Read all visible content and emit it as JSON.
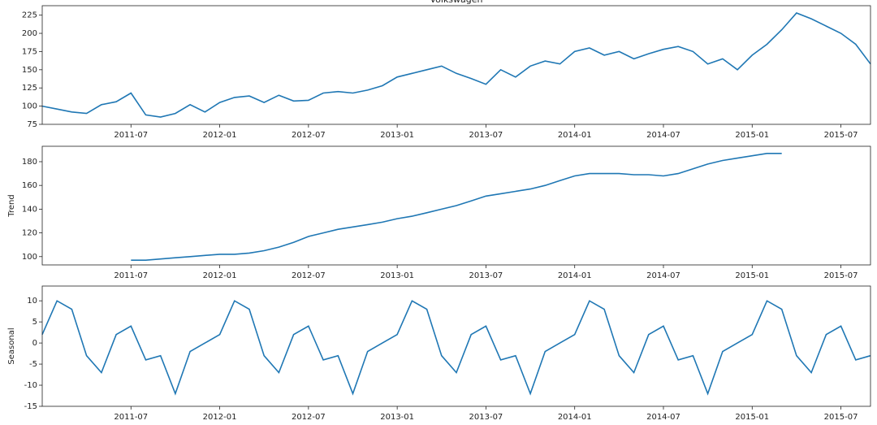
{
  "chart_data": [
    {
      "type": "line",
      "title": "Volkswagen",
      "x": [
        "2011-01",
        "2011-02",
        "2011-03",
        "2011-04",
        "2011-05",
        "2011-06",
        "2011-07",
        "2011-08",
        "2011-09",
        "2011-10",
        "2011-11",
        "2011-12",
        "2012-01",
        "2012-02",
        "2012-03",
        "2012-04",
        "2012-05",
        "2012-06",
        "2012-07",
        "2012-08",
        "2012-09",
        "2012-10",
        "2012-11",
        "2012-12",
        "2013-01",
        "2013-02",
        "2013-03",
        "2013-04",
        "2013-05",
        "2013-06",
        "2013-07",
        "2013-08",
        "2013-09",
        "2013-10",
        "2013-11",
        "2013-12",
        "2014-01",
        "2014-02",
        "2014-03",
        "2014-04",
        "2014-05",
        "2014-06",
        "2014-07",
        "2014-08",
        "2014-09",
        "2014-10",
        "2014-11",
        "2014-12",
        "2015-01",
        "2015-02",
        "2015-03",
        "2015-04",
        "2015-05",
        "2015-06",
        "2015-07",
        "2015-08",
        "2015-09"
      ],
      "series": [
        {
          "color": "#1f77b4",
          "values": [
            100,
            96,
            92,
            90,
            102,
            106,
            118,
            88,
            85,
            90,
            102,
            92,
            105,
            112,
            114,
            105,
            115,
            107,
            108,
            118,
            120,
            118,
            122,
            128,
            140,
            145,
            150,
            155,
            145,
            138,
            130,
            150,
            140,
            155,
            162,
            158,
            175,
            180,
            170,
            175,
            165,
            172,
            178,
            182,
            175,
            158,
            165,
            150,
            170,
            185,
            205,
            228,
            220,
            210,
            200,
            185,
            158
          ]
        }
      ],
      "xlim": [
        "2011-01",
        "2015-09"
      ],
      "xticks": [
        "2011-07",
        "2012-01",
        "2012-07",
        "2013-01",
        "2013-07",
        "2014-01",
        "2014-07",
        "2015-01",
        "2015-07"
      ],
      "ylim": [
        75,
        238
      ],
      "yticks": [
        75,
        100,
        125,
        150,
        175,
        200,
        225
      ]
    },
    {
      "type": "line",
      "ylabel": "Trend",
      "x": [
        "2011-01",
        "2011-02",
        "2011-03",
        "2011-04",
        "2011-05",
        "2011-06",
        "2011-07",
        "2011-08",
        "2011-09",
        "2011-10",
        "2011-11",
        "2011-12",
        "2012-01",
        "2012-02",
        "2012-03",
        "2012-04",
        "2012-05",
        "2012-06",
        "2012-07",
        "2012-08",
        "2012-09",
        "2012-10",
        "2012-11",
        "2012-12",
        "2013-01",
        "2013-02",
        "2013-03",
        "2013-04",
        "2013-05",
        "2013-06",
        "2013-07",
        "2013-08",
        "2013-09",
        "2013-10",
        "2013-11",
        "2013-12",
        "2014-01",
        "2014-02",
        "2014-03",
        "2014-04",
        "2014-05",
        "2014-06",
        "2014-07",
        "2014-08",
        "2014-09",
        "2014-10",
        "2014-11",
        "2014-12",
        "2015-01",
        "2015-02",
        "2015-03",
        "2015-04",
        "2015-05",
        "2015-06",
        "2015-07",
        "2015-08",
        "2015-09"
      ],
      "series": [
        {
          "color": "#1f77b4",
          "values": [
            null,
            null,
            null,
            null,
            null,
            null,
            97,
            97,
            98,
            99,
            100,
            101,
            102,
            102,
            103,
            105,
            108,
            112,
            117,
            120,
            123,
            125,
            127,
            129,
            132,
            134,
            137,
            140,
            143,
            147,
            151,
            153,
            155,
            157,
            160,
            164,
            168,
            170,
            170,
            170,
            169,
            169,
            168,
            170,
            174,
            178,
            181,
            183,
            185,
            187,
            187,
            null,
            null,
            null,
            null,
            null,
            null
          ]
        }
      ],
      "xlim": [
        "2011-01",
        "2015-09"
      ],
      "xticks": [
        "2011-07",
        "2012-01",
        "2012-07",
        "2013-01",
        "2013-07",
        "2014-01",
        "2014-07",
        "2015-01",
        "2015-07"
      ],
      "ylim": [
        93,
        193
      ],
      "yticks": [
        100,
        120,
        140,
        160,
        180
      ]
    },
    {
      "type": "line",
      "ylabel": "Seasonal",
      "x": [
        "2011-01",
        "2011-02",
        "2011-03",
        "2011-04",
        "2011-05",
        "2011-06",
        "2011-07",
        "2011-08",
        "2011-09",
        "2011-10",
        "2011-11",
        "2011-12",
        "2012-01",
        "2012-02",
        "2012-03",
        "2012-04",
        "2012-05",
        "2012-06",
        "2012-07",
        "2012-08",
        "2012-09",
        "2012-10",
        "2012-11",
        "2012-12",
        "2013-01",
        "2013-02",
        "2013-03",
        "2013-04",
        "2013-05",
        "2013-06",
        "2013-07",
        "2013-08",
        "2013-09",
        "2013-10",
        "2013-11",
        "2013-12",
        "2014-01",
        "2014-02",
        "2014-03",
        "2014-04",
        "2014-05",
        "2014-06",
        "2014-07",
        "2014-08",
        "2014-09",
        "2014-10",
        "2014-11",
        "2014-12",
        "2015-01",
        "2015-02",
        "2015-03",
        "2015-04",
        "2015-05",
        "2015-06",
        "2015-07",
        "2015-08",
        "2015-09"
      ],
      "series": [
        {
          "color": "#1f77b4",
          "values": [
            2,
            10,
            8,
            -3,
            -7,
            2,
            4,
            -4,
            -3,
            -12,
            -2,
            0,
            2,
            10,
            8,
            -3,
            -7,
            2,
            4,
            -4,
            -3,
            -12,
            -2,
            0,
            2,
            10,
            8,
            -3,
            -7,
            2,
            4,
            -4,
            -3,
            -12,
            -2,
            0,
            2,
            10,
            8,
            -3,
            -7,
            2,
            4,
            -4,
            -3,
            -12,
            -2,
            0,
            2,
            10,
            8,
            -3,
            -7,
            2,
            4,
            -4,
            -3
          ]
        }
      ],
      "xlim": [
        "2011-01",
        "2015-09"
      ],
      "xticks": [
        "2011-07",
        "2012-01",
        "2012-07",
        "2013-01",
        "2013-07",
        "2014-01",
        "2014-07",
        "2015-01",
        "2015-07"
      ],
      "ylim": [
        -15,
        13.5
      ],
      "yticks": [
        -15,
        -10,
        -5,
        0,
        5,
        10
      ]
    }
  ]
}
